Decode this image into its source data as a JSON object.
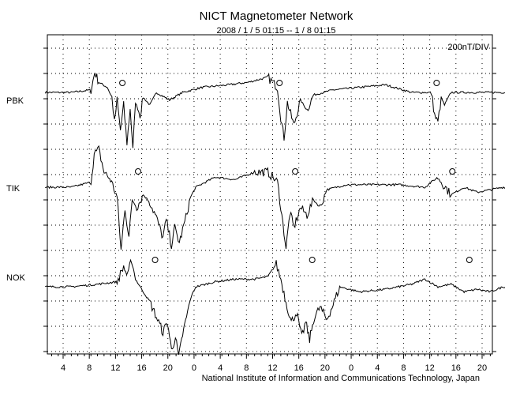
{
  "title": "NICT Magnetometer Network",
  "subtitle": "2008 / 1 / 5  01:15 -- 1 / 8  01:15",
  "scale": "200nT/DIV",
  "footer": "National Institute of Information and Communications Technology, Japan",
  "chart_data": {
    "type": "line",
    "grid": true,
    "x_ticks": [
      "4",
      "8",
      "12",
      "16",
      "20",
      "0",
      "4",
      "8",
      "12",
      "16",
      "20",
      "0",
      "4",
      "8",
      "12",
      "16",
      "20",
      "0"
    ],
    "stations": [
      {
        "name": "PBK",
        "markers_hours": [
          11.8,
          35.8,
          59.8
        ],
        "series": [
          [
            0,
            0
          ],
          [
            4,
            0
          ],
          [
            7,
            0.1
          ],
          [
            7.6,
            0.8
          ],
          [
            8.2,
            0.4
          ],
          [
            9.5,
            0.2
          ],
          [
            10.2,
            -0.2
          ],
          [
            10.6,
            -1.2
          ],
          [
            11,
            -0.3
          ],
          [
            11.5,
            -1.5
          ],
          [
            12,
            -0.5
          ],
          [
            12.5,
            -2
          ],
          [
            13,
            -0.6
          ],
          [
            13.4,
            -2.3
          ],
          [
            13.8,
            -0.4
          ],
          [
            14.5,
            -0.9
          ],
          [
            15,
            -0.2
          ],
          [
            16,
            -0.5
          ],
          [
            17,
            0
          ],
          [
            19,
            -0.3
          ],
          [
            21,
            0
          ],
          [
            24,
            0.2
          ],
          [
            28,
            0.3
          ],
          [
            31,
            0.4
          ],
          [
            34,
            0.6
          ],
          [
            35.5,
            0.2
          ],
          [
            36,
            -1
          ],
          [
            36.5,
            -1.8
          ],
          [
            37,
            -0.4
          ],
          [
            38,
            -1.3
          ],
          [
            39,
            -0.3
          ],
          [
            40,
            -0.7
          ],
          [
            41,
            -0.1
          ],
          [
            44,
            0.1
          ],
          [
            48,
            0.2
          ],
          [
            52,
            0.3
          ],
          [
            56,
            0
          ],
          [
            59,
            0
          ],
          [
            59.5,
            -0.9
          ],
          [
            60,
            -1.2
          ],
          [
            60.5,
            -0.2
          ],
          [
            61,
            -0.5
          ],
          [
            62,
            0
          ],
          [
            66,
            0
          ],
          [
            72,
            0
          ]
        ]
      },
      {
        "name": "TIK",
        "markers_hours": [
          14.2,
          38.2,
          62.2
        ],
        "series": [
          [
            0,
            0
          ],
          [
            4,
            0
          ],
          [
            7,
            0.2
          ],
          [
            7.5,
            1.3
          ],
          [
            8.2,
            1.5
          ],
          [
            9,
            0.6
          ],
          [
            10,
            0.3
          ],
          [
            11,
            -0.4
          ],
          [
            11.6,
            -2.5
          ],
          [
            12.2,
            -0.8
          ],
          [
            12.8,
            -2
          ],
          [
            13.3,
            -0.5
          ],
          [
            14,
            -0.8
          ],
          [
            15,
            -0.3
          ],
          [
            16,
            -0.6
          ],
          [
            17,
            -1.2
          ],
          [
            18,
            -2
          ],
          [
            18.5,
            -1.3
          ],
          [
            19.3,
            -2.3
          ],
          [
            19.8,
            -1.6
          ],
          [
            20.5,
            -2.2
          ],
          [
            21.5,
            -1.2
          ],
          [
            22.2,
            -0.4
          ],
          [
            23,
            0
          ],
          [
            26,
            0.4
          ],
          [
            29,
            0.3
          ],
          [
            32,
            0.6
          ],
          [
            34,
            0.6
          ],
          [
            35.5,
            0.2
          ],
          [
            36,
            -0.8
          ],
          [
            36.8,
            -2.4
          ],
          [
            37.4,
            -1
          ],
          [
            38,
            -1.6
          ],
          [
            39,
            -0.8
          ],
          [
            40,
            -1.1
          ],
          [
            41,
            -0.5
          ],
          [
            42,
            -0.8
          ],
          [
            43,
            -0.1
          ],
          [
            46,
            0.1
          ],
          [
            50,
            0.1
          ],
          [
            54,
            0.1
          ],
          [
            58,
            0
          ],
          [
            60,
            0.4
          ],
          [
            62,
            -0.3
          ],
          [
            64,
            0
          ],
          [
            66,
            -0.2
          ],
          [
            68,
            -0.1
          ],
          [
            70,
            0
          ],
          [
            72,
            0
          ]
        ]
      },
      {
        "name": "NOK",
        "markers_hours": [
          16.8,
          40.8,
          64.8
        ],
        "series": [
          [
            0,
            0
          ],
          [
            4,
            0
          ],
          [
            8,
            0.1
          ],
          [
            11,
            0.2
          ],
          [
            12,
            0.8
          ],
          [
            12.6,
            0.4
          ],
          [
            13.2,
            1.1
          ],
          [
            13.8,
            0.3
          ],
          [
            15,
            -0.2
          ],
          [
            16,
            -0.6
          ],
          [
            17,
            -1.2
          ],
          [
            18,
            -1.8
          ],
          [
            18.7,
            -1.4
          ],
          [
            19.3,
            -2.5
          ],
          [
            19.9,
            -2
          ],
          [
            20.4,
            -2.8
          ],
          [
            21,
            -1.9
          ],
          [
            21.6,
            -1.2
          ],
          [
            22.3,
            -0.4
          ],
          [
            23,
            0
          ],
          [
            26,
            0.2
          ],
          [
            29,
            0.3
          ],
          [
            32,
            0.3
          ],
          [
            34,
            0.4
          ],
          [
            35.3,
            0.9
          ],
          [
            36,
            0.3
          ],
          [
            36.8,
            -0.6
          ],
          [
            37.6,
            -1.4
          ],
          [
            38.4,
            -1
          ],
          [
            39.2,
            -2
          ],
          [
            39.8,
            -1.4
          ],
          [
            40.4,
            -2.1
          ],
          [
            41,
            -1.3
          ],
          [
            42,
            -0.8
          ],
          [
            43,
            -1.3
          ],
          [
            44,
            -0.7
          ],
          [
            45,
            0
          ],
          [
            48,
            -0.2
          ],
          [
            52,
            -0.1
          ],
          [
            56,
            0.1
          ],
          [
            58,
            0.3
          ],
          [
            60,
            0
          ],
          [
            62,
            0.1
          ],
          [
            64,
            -0.2
          ],
          [
            66,
            -0.1
          ],
          [
            68,
            -0.2
          ],
          [
            70,
            0
          ],
          [
            72,
            0
          ]
        ]
      }
    ]
  }
}
